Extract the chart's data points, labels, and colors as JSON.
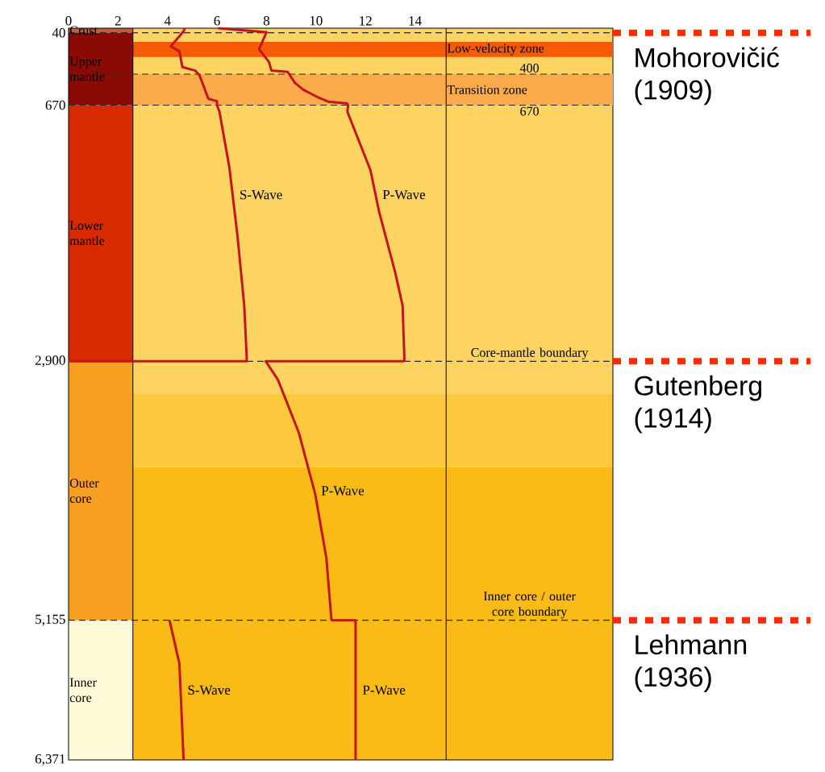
{
  "chart_data": {
    "type": "line",
    "xlim": [
      0,
      22
    ],
    "xticks": [
      0,
      2,
      4,
      6,
      8,
      10,
      12,
      14
    ],
    "ylim": [
      6371,
      0
    ],
    "yticks": [
      40,
      670,
      {
        "value": 2900,
        "label": "2,900"
      },
      {
        "value": 5155,
        "label": "5,155"
      },
      {
        "value": 6371,
        "label": "6,371"
      }
    ],
    "series": [
      {
        "name": "P-Wave",
        "color": "#c3161c",
        "x": [
          6.05,
          8.0,
          7.7,
          8.1,
          8.2,
          8.86,
          9.15,
          9.5,
          10.07,
          10.5,
          11.25,
          11.3,
          11.27,
          12.2,
          12.55,
          13.2,
          13.5,
          13.57,
          13.57
        ],
        "values": [
          0,
          35,
          183,
          294,
          369,
          381,
          476,
          538,
          600,
          640,
          655,
          670,
          728,
          1235,
          1597,
          2125,
          2415,
          2864,
          2900
        ]
      },
      {
        "name": "S-Wave",
        "color": "#c3161c",
        "x": [
          4.7,
          4.64,
          4.13,
          4.48,
          4.6,
          5.12,
          5.3,
          5.65,
          6.0,
          6.0,
          6.1,
          6.5,
          6.83,
          7.1,
          7.2,
          7.2,
          0
        ],
        "values": [
          0,
          30,
          158,
          201,
          338,
          369,
          414,
          614,
          636,
          670,
          728,
          1213,
          1814,
          2415,
          2864,
          2900,
          2900
        ]
      },
      {
        "name": "P-Wave",
        "color": "#c3161c",
        "x": [
          13.57,
          7.97,
          8.46,
          9.31,
          9.97,
          10.42,
          10.62,
          10.62
        ],
        "values": [
          2900,
          2900,
          3060,
          3524,
          4058,
          4614,
          5141,
          5155
        ]
      },
      {
        "name": "P-Wave",
        "color": "#c3161c",
        "x": [
          10.62,
          11.6,
          11.6
        ],
        "values": [
          5155,
          5155,
          6371
        ]
      },
      {
        "name": "S-Wave",
        "color": "#c3161c",
        "x": [
          4.08,
          4.48,
          4.64,
          4.65
        ],
        "values": [
          5155,
          5533,
          6330,
          6371
        ]
      }
    ],
    "bands": [
      {
        "axis": "y",
        "from": 120,
        "to": 250,
        "label": "Low-velocity zone",
        "color": "#f45b06"
      },
      {
        "axis": "y",
        "from": 400,
        "to": 670,
        "label": "Transition zone",
        "color": "#fbab4c"
      }
    ],
    "ref_lines": [
      {
        "axis": "x",
        "value": 2.6,
        "color": "#000000",
        "line_style": "solid"
      },
      {
        "axis": "x",
        "value": 15.26,
        "color": "#000000",
        "line_style": "solid"
      },
      {
        "axis": "y",
        "value": 40,
        "color": "#2a2a2a",
        "line_style": "dashed"
      },
      {
        "axis": "y",
        "value": 400,
        "label": "400",
        "color": "#2a2a2a",
        "line_style": "dashed"
      },
      {
        "axis": "y",
        "value": 670,
        "label": "670",
        "color": "#2a2a2a",
        "line_style": "dashed"
      },
      {
        "axis": "y",
        "value": 2900,
        "label": "Core-mantle boundary",
        "color": "#2a2a2a",
        "line_style": "dashed"
      },
      {
        "axis": "y",
        "value": 5155,
        "label": "Inner core / outer core boundary",
        "color": "#2a2a2a",
        "line_style": "dashed"
      },
      {
        "axis": "y",
        "value": 40,
        "label": "Mohorovičić (1909)",
        "color": "#ff2a00",
        "line_style": "dotted"
      },
      {
        "axis": "y",
        "value": 2900,
        "label": "Gutenberg (1914)",
        "color": "#ff2a00",
        "line_style": "dotted"
      },
      {
        "axis": "y",
        "value": 5155,
        "label": "Lehmann (1936)",
        "color": "#ff2a00",
        "line_style": "dotted"
      }
    ],
    "annotations": [
      "Crust",
      "Upper mantle",
      "Lower mantle",
      "Outer core",
      "Inner core"
    ]
  }
}
